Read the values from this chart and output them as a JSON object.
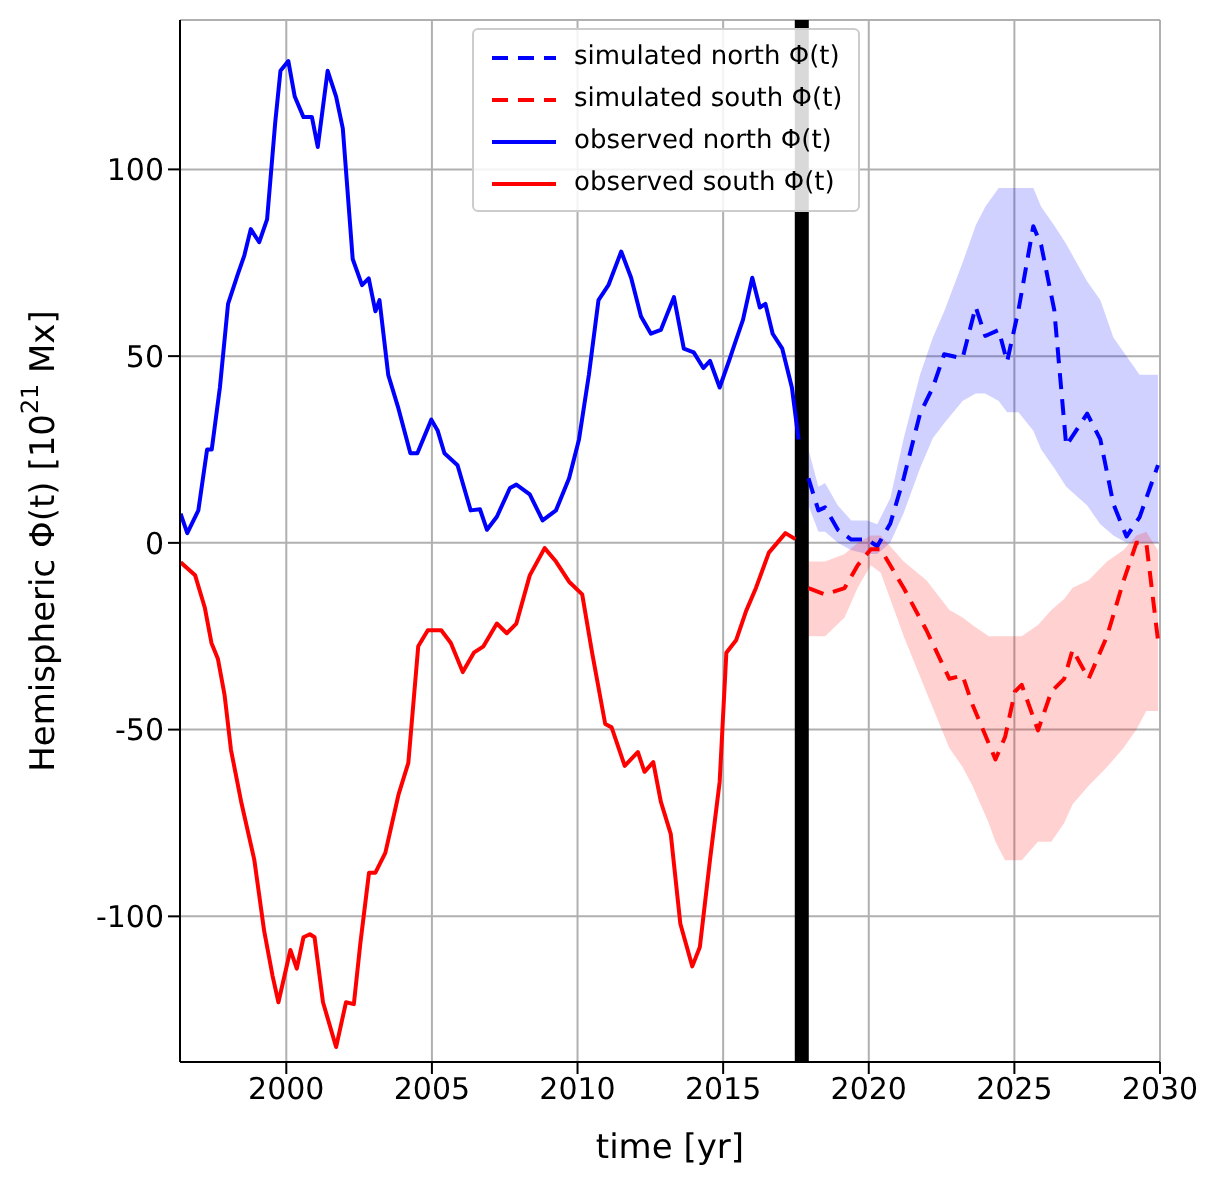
{
  "chart_data": {
    "type": "line",
    "xlabel": "time [yr]",
    "ylabel": "Hemispheric Φ(t) [10$^{21}$ Mx]",
    "xlim": [
      1996.35,
      2030
    ],
    "ylim": [
      -139,
      140
    ],
    "xticks": [
      2000,
      2005,
      2010,
      2015,
      2020,
      2025,
      2030
    ],
    "yticks": [
      -100,
      -50,
      0,
      50,
      100
    ],
    "grid": true,
    "legend": "top",
    "marker": "none",
    "ref_lines": [
      {
        "axis": "x",
        "value": 2017.7,
        "color": "#000000"
      }
    ],
    "series": [
      {
        "name": "simulated north Φ(t)",
        "color": "#0000ff",
        "line_style": "dashed",
        "x": [
          2017.93,
          2018.27,
          2018.5,
          2018.94,
          2019.4,
          2019.95,
          2020.29,
          2020.74,
          2021.2,
          2021.76,
          2022.2,
          2022.59,
          2023.22,
          2023.67,
          2024.0,
          2024.46,
          2024.75,
          2025.14,
          2025.65,
          2025.92,
          2026.37,
          2026.78,
          2027.5,
          2027.95,
          2028.4,
          2028.85,
          2029.3,
          2029.93
        ],
        "values": [
          17.3,
          8.7,
          9.5,
          3.5,
          0.9,
          0.9,
          -0.9,
          5.2,
          17.3,
          34.6,
          41.6,
          50.5,
          49.4,
          63.2,
          55.4,
          57,
          48.5,
          62.3,
          84.8,
          79.7,
          62.3,
          26,
          34.6,
          27.7,
          10.4,
          1.7,
          6.9,
          20.8
        ],
        "lower": [
          10,
          3,
          3,
          0,
          -2,
          -3,
          -3,
          0,
          8,
          20,
          28,
          32,
          38,
          40,
          40,
          38,
          35,
          35,
          30,
          25,
          20,
          15,
          10,
          5,
          2,
          0,
          0,
          0
        ],
        "upper": [
          25,
          15,
          16,
          10,
          6,
          6,
          5,
          12,
          28,
          45,
          55,
          62,
          75,
          85,
          90,
          95,
          95,
          95,
          95,
          90,
          85,
          80,
          70,
          65,
          55,
          50,
          45,
          45
        ]
      },
      {
        "name": "simulated south Φ(t)",
        "color": "#ff0000",
        "line_style": "dashed",
        "x": [
          2017.93,
          2018.5,
          2019.17,
          2019.62,
          2020.07,
          2020.41,
          2021.2,
          2021.98,
          2022.77,
          2023.22,
          2023.56,
          2024.12,
          2024.35,
          2024.68,
          2025.02,
          2025.25,
          2025.81,
          2026.27,
          2026.71,
          2027.0,
          2027.55,
          2028.18,
          2028.74,
          2029.19,
          2029.53,
          2029.93
        ],
        "values": [
          -12.1,
          -13.8,
          -12.1,
          -6,
          -1.7,
          -1.7,
          -12.1,
          -23.4,
          -36.4,
          -35.5,
          -43.3,
          -53.7,
          -58,
          -52,
          -39.8,
          -38,
          -50.2,
          -39.8,
          -36.4,
          -28.6,
          -36.4,
          -25,
          -10.4,
          0,
          0,
          -26
        ],
        "lower": [
          -25,
          -25,
          -20,
          -12,
          -6,
          -8,
          -25,
          -40,
          -55,
          -60,
          -65,
          -75,
          -80,
          -85,
          -85,
          -85,
          -80,
          -80,
          -75,
          -70,
          -65,
          -60,
          -55,
          -50,
          -45,
          -45
        ],
        "upper": [
          -5,
          -5,
          -3,
          0,
          2,
          2,
          -5,
          -10,
          -18,
          -20,
          -22,
          -25,
          -25,
          -25,
          -25,
          -25,
          -22,
          -18,
          -15,
          -12,
          -10,
          -5,
          -2,
          2,
          3,
          -2
        ]
      },
      {
        "name": "observed north Φ(t)",
        "color": "#0000ff",
        "line_style": "solid",
        "x": [
          1996.37,
          1996.6,
          1996.98,
          1997.28,
          1997.44,
          1997.72,
          1998.0,
          1998.33,
          1998.56,
          1998.78,
          1999.07,
          1999.34,
          1999.62,
          1999.8,
          2000.07,
          2000.29,
          2000.59,
          2000.88,
          2001.08,
          2001.42,
          2001.71,
          2001.94,
          2002.28,
          2002.6,
          2002.83,
          2003.06,
          2003.2,
          2003.5,
          2003.85,
          2004.26,
          2004.5,
          2004.98,
          2005.2,
          2005.43,
          2005.88,
          2006.33,
          2006.65,
          2006.89,
          2007.23,
          2007.68,
          2007.9,
          2008.36,
          2008.8,
          2009.26,
          2009.71,
          2010.05,
          2010.39,
          2010.72,
          2011.06,
          2011.5,
          2011.84,
          2012.18,
          2012.52,
          2012.86,
          2013.31,
          2013.65,
          2013.99,
          2014.32,
          2014.55,
          2014.88,
          2015.2,
          2015.45,
          2015.68,
          2016.0,
          2016.26,
          2016.45,
          2016.7,
          2017.03,
          2017.36,
          2017.59
        ],
        "values": [
          7.8,
          2.6,
          8.7,
          25,
          25,
          41.6,
          64,
          71.8,
          77,
          84,
          80.5,
          86.6,
          112.6,
          126.4,
          129,
          119.5,
          114,
          114,
          106,
          126.4,
          119.5,
          111,
          76,
          69,
          70.8,
          62,
          65,
          45,
          36,
          24,
          24,
          33,
          30,
          24,
          20.8,
          8.7,
          9,
          3.5,
          7,
          14.7,
          15.6,
          13,
          6,
          8.7,
          17.3,
          27.7,
          45,
          65,
          69,
          78,
          71,
          60.6,
          56,
          57,
          65.8,
          52,
          51,
          46.8,
          48.7,
          41.6,
          48.7,
          54.5,
          59.7,
          71,
          63,
          64,
          56,
          52,
          41.6,
          27.7
        ]
      },
      {
        "name": "observed south Φ(t)",
        "color": "#ff0000",
        "line_style": "solid",
        "x": [
          1996.37,
          1996.87,
          1997.2,
          1997.43,
          1997.65,
          1997.88,
          1998.1,
          1998.45,
          1998.9,
          1999.24,
          1999.53,
          1999.73,
          2000.14,
          2000.36,
          2000.59,
          2000.81,
          2000.97,
          2001.26,
          2001.71,
          2002.05,
          2002.32,
          2002.54,
          2002.84,
          2003.06,
          2003.4,
          2003.85,
          2004.19,
          2004.53,
          2004.86,
          2005.32,
          2005.65,
          2006.06,
          2006.44,
          2006.77,
          2007.23,
          2007.57,
          2007.9,
          2008.36,
          2008.87,
          2009.26,
          2009.71,
          2010.16,
          2010.5,
          2010.95,
          2011.17,
          2011.62,
          2012.07,
          2012.3,
          2012.6,
          2012.86,
          2013.2,
          2013.53,
          2013.94,
          2014.2,
          2014.55,
          2014.88,
          2015.11,
          2015.45,
          2015.79,
          2016.13,
          2016.57,
          2017.14,
          2017.48
        ],
        "values": [
          -5.2,
          -8.7,
          -17.3,
          -26.8,
          -31,
          -40.7,
          -55.4,
          -69.3,
          -84.8,
          -103.9,
          -116,
          -123,
          -109,
          -114,
          -105.6,
          -104.8,
          -105.6,
          -123,
          -135,
          -123,
          -123.5,
          -107.4,
          -88.3,
          -88.3,
          -83,
          -67.5,
          -58.9,
          -27.7,
          -23.4,
          -23.4,
          -26.8,
          -34.6,
          -29.4,
          -27.7,
          -21.6,
          -24.2,
          -21.6,
          -8.7,
          -1.4,
          -5,
          -10.4,
          -13.8,
          -29.4,
          -48.5,
          -49.4,
          -59.7,
          -56,
          -61.3,
          -58.7,
          -69.3,
          -77.9,
          -102,
          -113.4,
          -108.2,
          -84.8,
          -64,
          -29.4,
          -26,
          -18.2,
          -12,
          -2.6,
          2.6,
          1
        ]
      }
    ]
  }
}
